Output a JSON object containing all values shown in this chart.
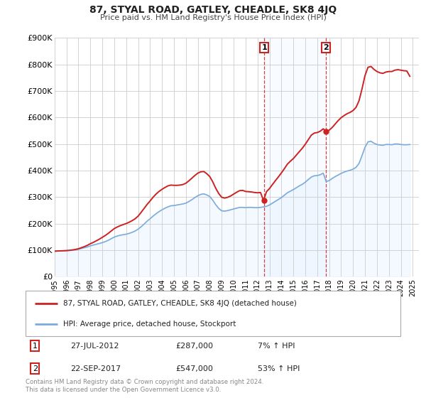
{
  "title": "87, STYAL ROAD, GATLEY, CHEADLE, SK8 4JQ",
  "subtitle": "Price paid vs. HM Land Registry's House Price Index (HPI)",
  "background_color": "#ffffff",
  "plot_bg_color": "#ffffff",
  "grid_color": "#cccccc",
  "hpi_line_color": "#7aabdb",
  "hpi_fill_color": "#ddeeff",
  "price_line_color": "#cc2222",
  "marker_color": "#cc2222",
  "ylim": [
    0,
    900000
  ],
  "xlim_start": 1995.0,
  "xlim_end": 2025.5,
  "ylabel_ticks": [
    0,
    100000,
    200000,
    300000,
    400000,
    500000,
    600000,
    700000,
    800000,
    900000
  ],
  "ylabel_labels": [
    "£0",
    "£100K",
    "£200K",
    "£300K",
    "£400K",
    "£500K",
    "£600K",
    "£700K",
    "£800K",
    "£900K"
  ],
  "xticks": [
    1995,
    1996,
    1997,
    1998,
    1999,
    2000,
    2001,
    2002,
    2003,
    2004,
    2005,
    2006,
    2007,
    2008,
    2009,
    2010,
    2011,
    2012,
    2013,
    2014,
    2015,
    2016,
    2017,
    2018,
    2019,
    2020,
    2021,
    2022,
    2023,
    2024,
    2025
  ],
  "sale1_x": 2012.57,
  "sale1_y": 287000,
  "sale1_label": "1",
  "sale1_date": "27-JUL-2012",
  "sale1_price": "£287,000",
  "sale1_hpi": "7% ↑ HPI",
  "sale2_x": 2017.73,
  "sale2_y": 547000,
  "sale2_label": "2",
  "sale2_date": "22-SEP-2017",
  "sale2_price": "£547,000",
  "sale2_hpi": "53% ↑ HPI",
  "legend_line1": "87, STYAL ROAD, GATLEY, CHEADLE, SK8 4JQ (detached house)",
  "legend_line2": "HPI: Average price, detached house, Stockport",
  "footnote": "Contains HM Land Registry data © Crown copyright and database right 2024.\nThis data is licensed under the Open Government Licence v3.0.",
  "hpi_data_x": [
    1995.0,
    1995.25,
    1995.5,
    1995.75,
    1996.0,
    1996.25,
    1996.5,
    1996.75,
    1997.0,
    1997.25,
    1997.5,
    1997.75,
    1998.0,
    1998.25,
    1998.5,
    1998.75,
    1999.0,
    1999.25,
    1999.5,
    1999.75,
    2000.0,
    2000.25,
    2000.5,
    2000.75,
    2001.0,
    2001.25,
    2001.5,
    2001.75,
    2002.0,
    2002.25,
    2002.5,
    2002.75,
    2003.0,
    2003.25,
    2003.5,
    2003.75,
    2004.0,
    2004.25,
    2004.5,
    2004.75,
    2005.0,
    2005.25,
    2005.5,
    2005.75,
    2006.0,
    2006.25,
    2006.5,
    2006.75,
    2007.0,
    2007.25,
    2007.5,
    2007.75,
    2008.0,
    2008.25,
    2008.5,
    2008.75,
    2009.0,
    2009.25,
    2009.5,
    2009.75,
    2010.0,
    2010.25,
    2010.5,
    2010.75,
    2011.0,
    2011.25,
    2011.5,
    2011.75,
    2012.0,
    2012.25,
    2012.5,
    2012.75,
    2013.0,
    2013.25,
    2013.5,
    2013.75,
    2014.0,
    2014.25,
    2014.5,
    2014.75,
    2015.0,
    2015.25,
    2015.5,
    2015.75,
    2016.0,
    2016.25,
    2016.5,
    2016.75,
    2017.0,
    2017.25,
    2017.5,
    2017.75,
    2018.0,
    2018.25,
    2018.5,
    2018.75,
    2019.0,
    2019.25,
    2019.5,
    2019.75,
    2020.0,
    2020.25,
    2020.5,
    2020.75,
    2021.0,
    2021.25,
    2021.5,
    2021.75,
    2022.0,
    2022.25,
    2022.5,
    2022.75,
    2023.0,
    2023.25,
    2023.5,
    2023.75,
    2024.0,
    2024.25,
    2024.5,
    2024.75
  ],
  "hpi_data_y": [
    96000,
    96500,
    97000,
    97500,
    98000,
    99000,
    100000,
    101000,
    103000,
    106000,
    109000,
    112000,
    116000,
    119000,
    122000,
    125000,
    128000,
    132000,
    137000,
    143000,
    149000,
    153000,
    156000,
    158000,
    160000,
    163000,
    167000,
    172000,
    179000,
    188000,
    198000,
    209000,
    218000,
    228000,
    237000,
    245000,
    252000,
    258000,
    263000,
    267000,
    268000,
    270000,
    272000,
    274000,
    277000,
    283000,
    290000,
    298000,
    305000,
    310000,
    312000,
    308000,
    302000,
    288000,
    271000,
    257000,
    248000,
    247000,
    249000,
    252000,
    255000,
    258000,
    261000,
    261000,
    260000,
    261000,
    261000,
    260000,
    260000,
    261000,
    263000,
    265000,
    270000,
    277000,
    284000,
    291000,
    298000,
    307000,
    316000,
    322000,
    328000,
    335000,
    342000,
    348000,
    356000,
    366000,
    375000,
    380000,
    381000,
    384000,
    390000,
    358000,
    362000,
    370000,
    377000,
    383000,
    389000,
    394000,
    398000,
    401000,
    405000,
    412000,
    427000,
    456000,
    488000,
    508000,
    510000,
    503000,
    498000,
    496000,
    495000,
    498000,
    498000,
    497000,
    500000,
    500000,
    498000,
    497000,
    497000,
    498000
  ],
  "price_data_x": [
    1995.0,
    1995.25,
    1995.5,
    1995.75,
    1996.0,
    1996.25,
    1996.5,
    1996.75,
    1997.0,
    1997.25,
    1997.5,
    1997.75,
    1998.0,
    1998.25,
    1998.5,
    1998.75,
    1999.0,
    1999.25,
    1999.5,
    1999.75,
    2000.0,
    2000.25,
    2000.5,
    2000.75,
    2001.0,
    2001.25,
    2001.5,
    2001.75,
    2002.0,
    2002.25,
    2002.5,
    2002.75,
    2003.0,
    2003.25,
    2003.5,
    2003.75,
    2004.0,
    2004.25,
    2004.5,
    2004.75,
    2005.0,
    2005.25,
    2005.5,
    2005.75,
    2006.0,
    2006.25,
    2006.5,
    2006.75,
    2007.0,
    2007.25,
    2007.5,
    2007.75,
    2008.0,
    2008.25,
    2008.5,
    2008.75,
    2009.0,
    2009.25,
    2009.5,
    2009.75,
    2010.0,
    2010.25,
    2010.5,
    2010.75,
    2011.0,
    2011.25,
    2011.5,
    2011.75,
    2012.0,
    2012.25,
    2012.5,
    2012.75,
    2013.0,
    2013.25,
    2013.5,
    2013.75,
    2014.0,
    2014.25,
    2014.5,
    2014.75,
    2015.0,
    2015.25,
    2015.5,
    2015.75,
    2016.0,
    2016.25,
    2016.5,
    2016.75,
    2017.0,
    2017.25,
    2017.5,
    2017.75,
    2018.0,
    2018.25,
    2018.5,
    2018.75,
    2019.0,
    2019.25,
    2019.5,
    2019.75,
    2020.0,
    2020.25,
    2020.5,
    2020.75,
    2021.0,
    2021.25,
    2021.5,
    2021.75,
    2022.0,
    2022.25,
    2022.5,
    2022.75,
    2023.0,
    2023.25,
    2023.5,
    2023.75,
    2024.0,
    2024.25,
    2024.5,
    2024.75
  ],
  "price_data_y": [
    96000,
    96500,
    97000,
    97500,
    98000,
    99000,
    100500,
    102500,
    105000,
    109000,
    113000,
    118000,
    124000,
    129000,
    135000,
    141000,
    148000,
    155000,
    163000,
    172000,
    181000,
    187000,
    192000,
    196000,
    200000,
    205000,
    211000,
    218000,
    228000,
    242000,
    257000,
    272000,
    285000,
    299000,
    311000,
    321000,
    329000,
    336000,
    342000,
    345000,
    344000,
    344000,
    345000,
    347000,
    352000,
    361000,
    371000,
    381000,
    390000,
    395000,
    396000,
    388000,
    377000,
    357000,
    333000,
    313000,
    299000,
    296000,
    299000,
    304000,
    311000,
    318000,
    324000,
    325000,
    321000,
    320000,
    319000,
    317000,
    316000,
    317000,
    287000,
    320000,
    332000,
    347000,
    362000,
    376000,
    391000,
    407000,
    424000,
    435000,
    445000,
    458000,
    471000,
    484000,
    499000,
    516000,
    533000,
    541000,
    543000,
    548000,
    557000,
    547000,
    552000,
    562000,
    575000,
    588000,
    599000,
    607000,
    614000,
    619000,
    626000,
    638000,
    663000,
    708000,
    758000,
    789000,
    792000,
    781000,
    773000,
    768000,
    766000,
    771000,
    773000,
    773000,
    778000,
    780000,
    778000,
    776000,
    775000,
    755000
  ]
}
